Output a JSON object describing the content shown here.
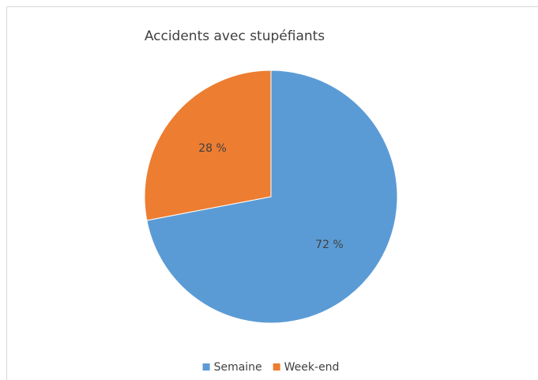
{
  "chart_data": {
    "type": "pie",
    "title": "Accidents avec stupéfiants",
    "categories": [
      "Semaine",
      "Week-end"
    ],
    "values": [
      72,
      28
    ],
    "value_labels": [
      "72 %",
      "28 %"
    ],
    "colors": [
      "#5b9bd5",
      "#ed7d31"
    ],
    "legend": "bottom"
  }
}
